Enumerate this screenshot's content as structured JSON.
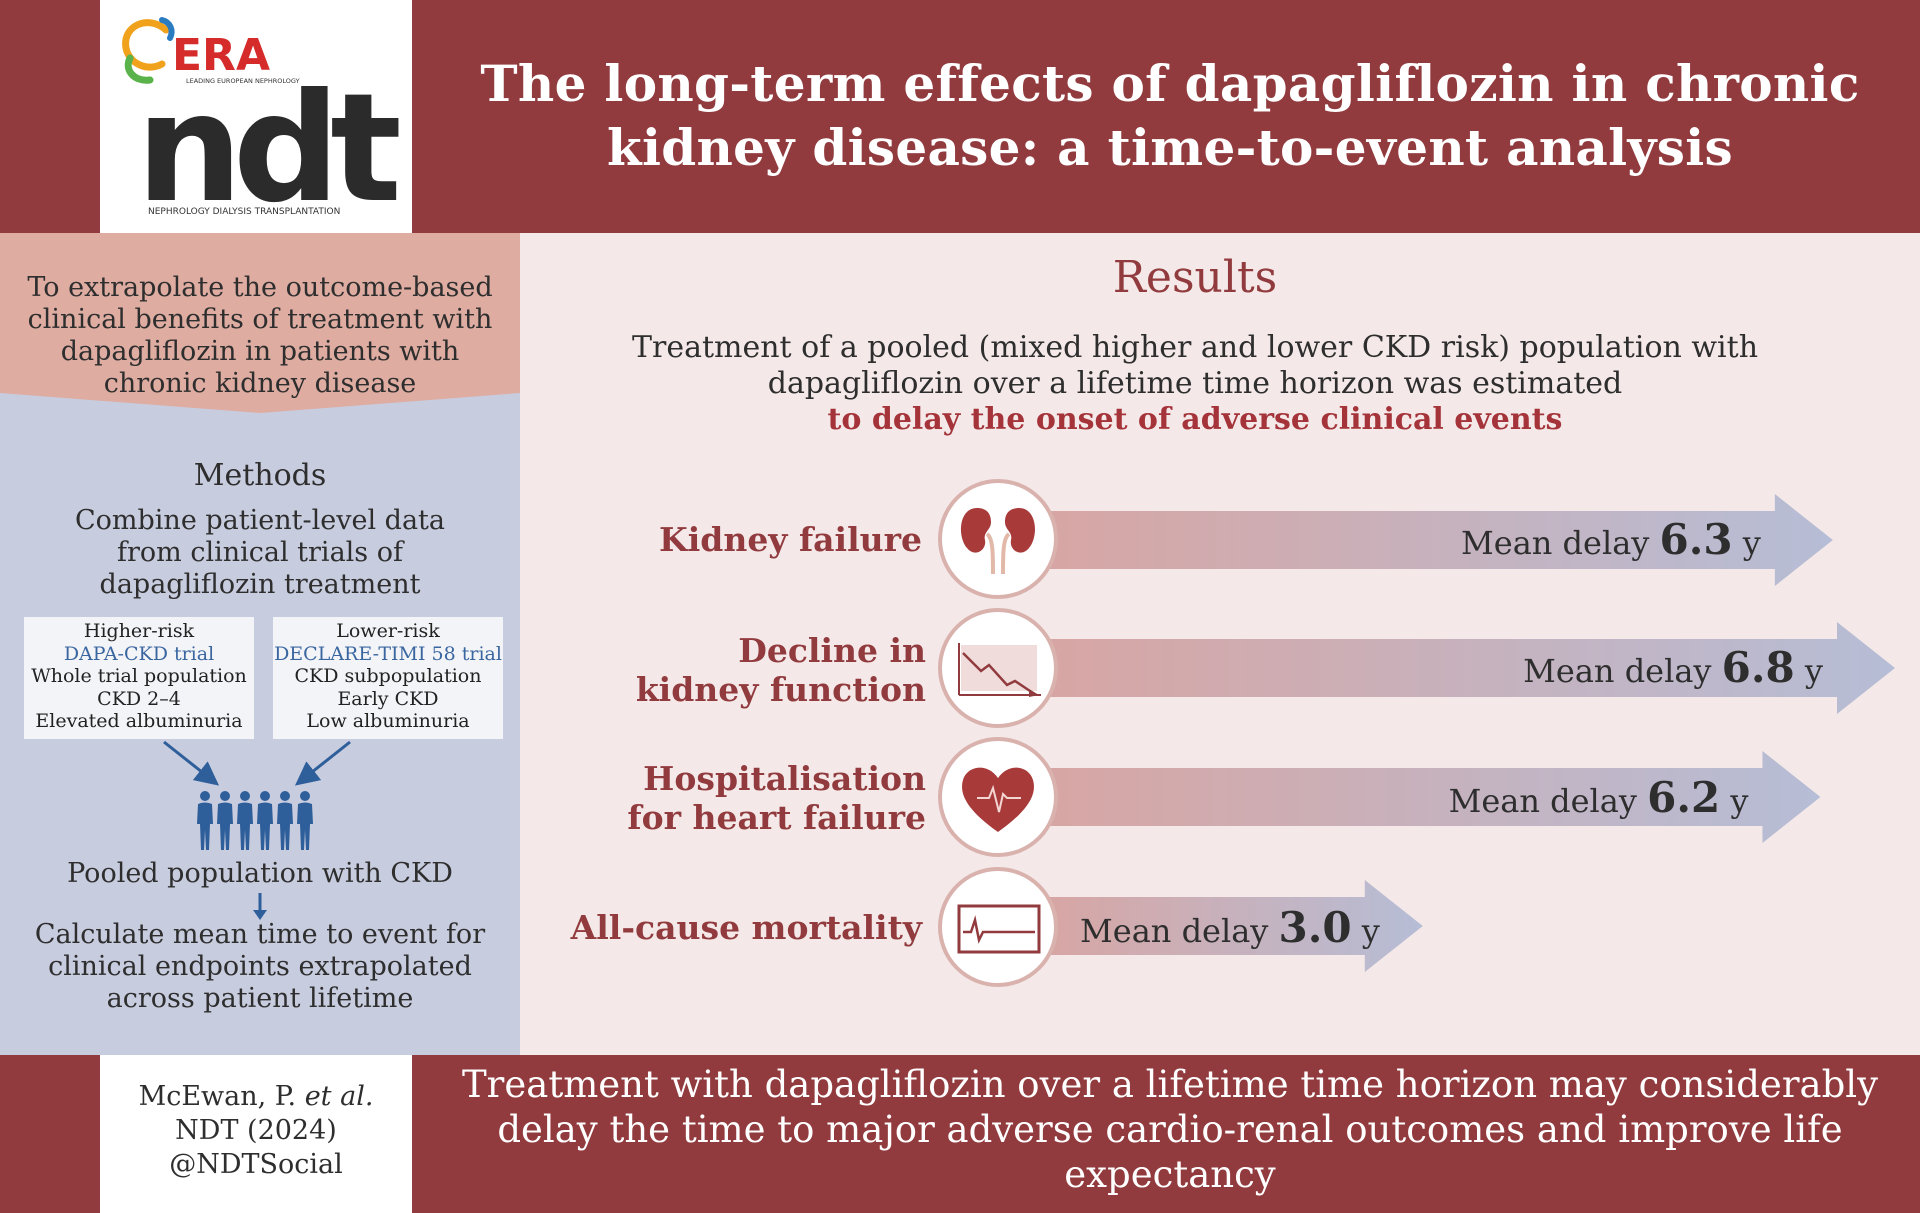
{
  "header": {
    "logo_brand": "ERA",
    "logo_tagline": "LEADING EUROPEAN NEPHROLOGY",
    "logo_mark": "ndt",
    "logo_subtitle": "NEPHROLOGY DIALYSIS TRANSPLANTATION",
    "title": "The long-term effects of dapagliflozin in chronic kidney disease: a time-to-event analysis"
  },
  "objective": "To extrapolate the outcome-based clinical benefits of treatment with dapagliflozin in patients with chronic kidney disease",
  "methods": {
    "title": "Methods",
    "description": "Combine patient-level data from clinical trials of dapagliflozin treatment",
    "trials": [
      {
        "risk": "Higher-risk",
        "name": "DAPA-CKD trial",
        "lines": [
          "Whole trial population",
          "CKD 2–4",
          "Elevated albuminuria"
        ]
      },
      {
        "risk": "Lower-risk",
        "name": "DECLARE-TIMI 58 trial",
        "lines": [
          "CKD subpopulation",
          "Early CKD",
          "Low albuminuria"
        ]
      }
    ],
    "pooled": "Pooled population with CKD",
    "calculate": "Calculate mean time to event for clinical endpoints extrapolated across patient lifetime"
  },
  "results": {
    "title": "Results",
    "summary": "Treatment of a pooled (mixed higher and lower CKD risk) population with dapagliflozin over a lifetime time horizon was estimated",
    "summary_highlight": "to delay the onset of adverse clinical events",
    "endpoints": [
      {
        "label": "Kidney failure",
        "icon": "kidneys-icon",
        "delay_prefix": "Mean delay",
        "delay_value": 6.3,
        "delay_text": "6.3",
        "unit": "y"
      },
      {
        "label": "Decline in kidney function",
        "icon": "declining-chart-icon",
        "delay_prefix": "Mean delay",
        "delay_value": 6.8,
        "delay_text": "6.8",
        "unit": "y"
      },
      {
        "label": "Hospitalisation for heart failure",
        "icon": "heart-icon",
        "delay_prefix": "Mean delay",
        "delay_value": 6.2,
        "delay_text": "6.2",
        "unit": "y"
      },
      {
        "label": "All-cause mortality",
        "icon": "flatline-monitor-icon",
        "delay_prefix": "Mean delay",
        "delay_value": 3.0,
        "delay_text": "3.0",
        "unit": "y"
      }
    ]
  },
  "footer": {
    "citation_author": "McEwan, P.",
    "citation_etal": "et al.",
    "citation_journal": "NDT (2024)",
    "citation_handle": "@NDTSocial",
    "conclusion": "Treatment with dapagliflozin over a lifetime time horizon may considerably delay the time to major adverse cardio-renal outcomes and improve life expectancy"
  },
  "colors": {
    "brand_red": "#923b3e",
    "objective_bg": "#deaca1",
    "methods_bg": "#c8ccdf",
    "results_bg": "#f4e9e8",
    "trial_link": "#3a66a0",
    "person_blue": "#2e5f9a"
  }
}
